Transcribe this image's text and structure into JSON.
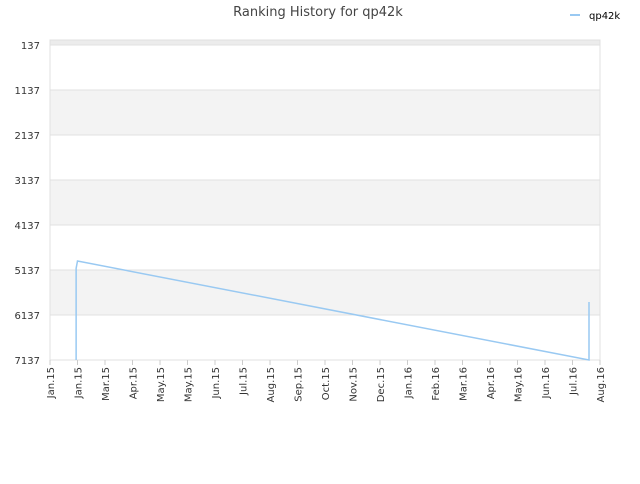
{
  "chart_data": {
    "type": "line",
    "title": "Ranking History for qp42k",
    "x": [
      0.95,
      0.95,
      1.0,
      19.6,
      19.6
    ],
    "series": [
      {
        "name": "qp42k",
        "color": "#99c9f2",
        "values": [
          7137,
          5100,
          4937,
          7137,
          5848
        ]
      }
    ],
    "xlim": [
      0,
      20
    ],
    "xticks": [
      {
        "value": 0,
        "label": "Jan.15"
      },
      {
        "value": 1,
        "label": "Jan.15"
      },
      {
        "value": 2,
        "label": "Mar.15"
      },
      {
        "value": 3,
        "label": "Apr.15"
      },
      {
        "value": 4,
        "label": "May.15"
      },
      {
        "value": 5,
        "label": "May.15"
      },
      {
        "value": 6,
        "label": "Jun.15"
      },
      {
        "value": 7,
        "label": "Jul.15"
      },
      {
        "value": 8,
        "label": "Aug.15"
      },
      {
        "value": 9,
        "label": "Sep.15"
      },
      {
        "value": 10,
        "label": "Oct.15"
      },
      {
        "value": 11,
        "label": "Nov.15"
      },
      {
        "value": 12,
        "label": "Dec.15"
      },
      {
        "value": 13,
        "label": "Jan.16"
      },
      {
        "value": 14,
        "label": "Feb.16"
      },
      {
        "value": 15,
        "label": "Mar.16"
      },
      {
        "value": 16,
        "label": "Apr.16"
      },
      {
        "value": 17,
        "label": "May.16"
      },
      {
        "value": 18,
        "label": "Jun.16"
      },
      {
        "value": 19,
        "label": "Jul.16"
      },
      {
        "value": 20,
        "label": "Aug.16"
      }
    ],
    "ylim": [
      7137,
      137
    ],
    "yticks": [
      137,
      1137,
      2137,
      3137,
      4137,
      5137,
      6137,
      7137
    ],
    "grid": true,
    "legend": "top-right"
  }
}
